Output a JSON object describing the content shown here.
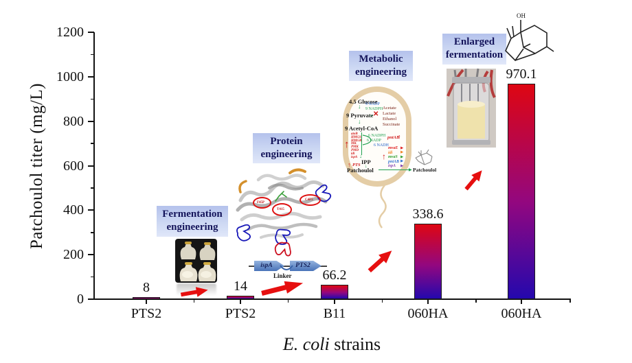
{
  "chart_data": {
    "type": "bar",
    "title": "",
    "categories": [
      "PTS2",
      "PTS2",
      "B11",
      "060HA",
      "060HA"
    ],
    "values": [
      8,
      14,
      66.2,
      338.6,
      970.1
    ],
    "value_labels": [
      "8",
      "14",
      "66.2",
      "338.6",
      "970.1"
    ],
    "xlabel": "E. coli strains",
    "xlabel_italic": "E. coli",
    "xlabel_rest": " strains",
    "ylabel": "Patchoulol titer (mg/L)",
    "ylim": [
      0,
      1200
    ],
    "ytick_major": 200,
    "ytick_minor": 100,
    "grid": false,
    "legend": "none",
    "bar_gradient_top": "#de0612",
    "bar_gradient_mid": "#93077f",
    "bar_gradient_bottom": "#2408ad",
    "bar_border": "#1a1a1a"
  },
  "colors": {
    "arrow": "#e60f0f",
    "annotation_box_top": "#b4c2ec",
    "annotation_box_bottom": "#e0e7f9",
    "annotation_text": "#14145a",
    "cell_outline": "#e4cda6"
  },
  "boxes": {
    "fermentation": {
      "line1": "Fermentation",
      "line2": "engineering"
    },
    "protein": {
      "line1": "Protein",
      "line2": "engineering"
    },
    "metabolic": {
      "line1": "Metabolic",
      "line2": "engineering"
    },
    "enlarged": {
      "line1": "Enlarged",
      "line2": "fermentation"
    }
  },
  "pathway": {
    "glucose": "4.5 Glucose",
    "nadp": "9 NADP",
    "nadph": "9 NADPH",
    "pyruvate": "9 Pyruvate",
    "byproducts": [
      "Acetate",
      "Lactate",
      "Ethanol",
      "Succinate"
    ],
    "acetylcoa": "9 Acetyl-CoA",
    "mva_genes": [
      "atoB",
      "HMGS",
      "HMGR",
      "MK",
      "PMK",
      "PMD",
      "idi",
      "ispA"
    ],
    "nadph6": "6 NADPH",
    "nadp6": "6 NADP",
    "nadh6": "6 NADH",
    "pntab": "pntAB",
    "ipp": "IPP",
    "pts": "PTS",
    "patchoulol_in": "Patchoulol",
    "patchoulol_out": "Patchoulol",
    "operon": [
      {
        "name": "mvaE",
        "color": "#e02020"
      },
      {
        "name": "idi",
        "color": "#f08020"
      },
      {
        "name": "mvaS",
        "color": "#30a030"
      },
      {
        "name": "pntAB",
        "color": "#3070d0"
      },
      {
        "name": "ispA",
        "color": "#8040b0"
      }
    ]
  },
  "construct": {
    "gene1": "ispA",
    "gene2": "PTS2",
    "linker": "Linker"
  },
  "protein": {
    "mutations": [
      "F45P",
      "T415",
      "C4F5"
    ]
  },
  "molecule": {
    "hydroxyl": "OH"
  },
  "icons": {
    "down_arrow": "↓",
    "up_arrow": "↑",
    "right_arrow": "→",
    "cross": "✕",
    "play": "▶"
  }
}
